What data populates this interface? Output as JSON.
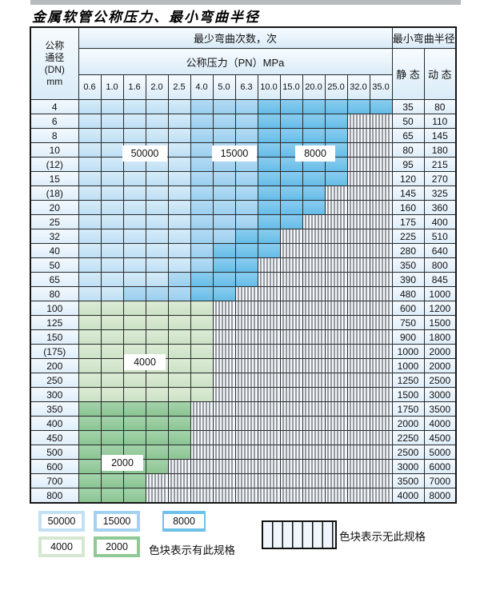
{
  "page": {
    "title": "金属软管公称压力、最小弯曲半径"
  },
  "table": {
    "corner_lines": [
      "公称",
      "通径",
      "(DN)",
      "mm"
    ],
    "bend_cycles_header": "最少弯曲次数，次",
    "pressure_header": "公称压力（PN）MPa",
    "radius_header": "最小弯曲半径",
    "static_header": "静 态",
    "dynamic_header": "动 态"
  },
  "zone_labels": {
    "z50000": "50000",
    "z15000": "15000",
    "z8000": "8000",
    "z4000": "4000",
    "z2000": "2000"
  },
  "legend": {
    "items": [
      {
        "value": "50000",
        "zone": "L"
      },
      {
        "value": "15000",
        "zone": "M"
      },
      {
        "value": "8000",
        "zone": "D"
      },
      {
        "value": "4000",
        "zone": "G"
      },
      {
        "value": "2000",
        "zone": "g"
      }
    ],
    "has_spec_note": "色块表示有此规格",
    "no_spec_note": "色块表示无此规格"
  },
  "colors": {
    "blue_50000": "#c3e1f5",
    "blue_15000": "#a2d2ef",
    "blue_8000": "#6ec1e9",
    "green_4000": "#d5e7d0",
    "green_2000": "#8fc996",
    "hatch_bg": "#f0f6fc"
  },
  "chart_data": {
    "type": "table",
    "title": "金属软管公称压力、最小弯曲半径",
    "x_axis_label": "公称压力（PN）MPa",
    "y_axis_label": "公称通径(DN) mm",
    "columns_pn_mpa": [
      "0.6",
      "1.0",
      "1.6",
      "2.0",
      "2.5",
      "4.0",
      "5.0",
      "6.3",
      "10.0",
      "15.0",
      "20.0",
      "25.0",
      "32.0",
      "35.0"
    ],
    "cell_zone_codes": {
      "L": "50000次(有此规格)",
      "M": "15000次(有此规格)",
      "D": "8000次(有此规格)",
      "G": "4000次(有此规格)",
      "g": "2000次(有此规格)",
      "H": "无此规格"
    },
    "radius_columns": [
      "静 态",
      "动 态"
    ],
    "rows": [
      {
        "dn": "4",
        "cells": "LLLLLMMMDDDDDD",
        "static": "35",
        "dynamic": "80"
      },
      {
        "dn": "6",
        "cells": "LLLLLMMMDDDDHH",
        "static": "50",
        "dynamic": "110"
      },
      {
        "dn": "8",
        "cells": "LLLLLMMMDDDDHH",
        "static": "65",
        "dynamic": "145"
      },
      {
        "dn": "10",
        "cells": "LLLLLMMMDDDDHH",
        "static": "80",
        "dynamic": "180"
      },
      {
        "dn": "(12)",
        "cells": "LLLLLMMMDDDDHH",
        "static": "95",
        "dynamic": "215"
      },
      {
        "dn": "15",
        "cells": "LLLLLMMMDDDDHH",
        "static": "120",
        "dynamic": "270"
      },
      {
        "dn": "(18)",
        "cells": "LLLLLMMMDDDHHH",
        "static": "145",
        "dynamic": "325"
      },
      {
        "dn": "20",
        "cells": "LLLLLMMMDDDHHH",
        "static": "160",
        "dynamic": "360"
      },
      {
        "dn": "25",
        "cells": "LLLLLMMMDDHHHH",
        "static": "175",
        "dynamic": "400"
      },
      {
        "dn": "32",
        "cells": "LLLLLMMDDHHHHH",
        "static": "225",
        "dynamic": "510"
      },
      {
        "dn": "40",
        "cells": "LLLLLMDDDHHHHH",
        "static": "280",
        "dynamic": "640"
      },
      {
        "dn": "50",
        "cells": "LLLLLMDDHHHHHH",
        "static": "350",
        "dynamic": "800"
      },
      {
        "dn": "65",
        "cells": "LLLLMDDDHHHHHH",
        "static": "390",
        "dynamic": "845"
      },
      {
        "dn": "80",
        "cells": "LLMMMDDHHHHHHH",
        "static": "480",
        "dynamic": "1000"
      },
      {
        "dn": "100",
        "cells": "GGGGGGHHHHHHHH",
        "static": "600",
        "dynamic": "1200"
      },
      {
        "dn": "125",
        "cells": "GGGGGGHHHHHHHH",
        "static": "750",
        "dynamic": "1500"
      },
      {
        "dn": "150",
        "cells": "GGGGGGHHHHHHHH",
        "static": "900",
        "dynamic": "1800"
      },
      {
        "dn": "(175)",
        "cells": "GGGGGGHHHHHHHH",
        "static": "1000",
        "dynamic": "2000"
      },
      {
        "dn": "200",
        "cells": "GGGGGGHHHHHHHH",
        "static": "1000",
        "dynamic": "2000"
      },
      {
        "dn": "250",
        "cells": "GGGGGGHHHHHHHH",
        "static": "1250",
        "dynamic": "2500"
      },
      {
        "dn": "300",
        "cells": "GGGGGGHHHHHHHH",
        "static": "1500",
        "dynamic": "3000"
      },
      {
        "dn": "350",
        "cells": "gggggHHHHHHHHH",
        "static": "1750",
        "dynamic": "3500"
      },
      {
        "dn": "400",
        "cells": "gggggHHHHHHHHH",
        "static": "2000",
        "dynamic": "4000"
      },
      {
        "dn": "450",
        "cells": "gggggHHHHHHHHH",
        "static": "2250",
        "dynamic": "4500"
      },
      {
        "dn": "500",
        "cells": "gggggHHHHHHHHH",
        "static": "2500",
        "dynamic": "5000"
      },
      {
        "dn": "600",
        "cells": "ggggHHHHHHHHHH",
        "static": "3000",
        "dynamic": "6000"
      },
      {
        "dn": "700",
        "cells": "gggHHHHHHHHHHH",
        "static": "3500",
        "dynamic": "7000"
      },
      {
        "dn": "800",
        "cells": "gggHHHHHHHHHHH",
        "static": "4000",
        "dynamic": "8000"
      }
    ]
  }
}
